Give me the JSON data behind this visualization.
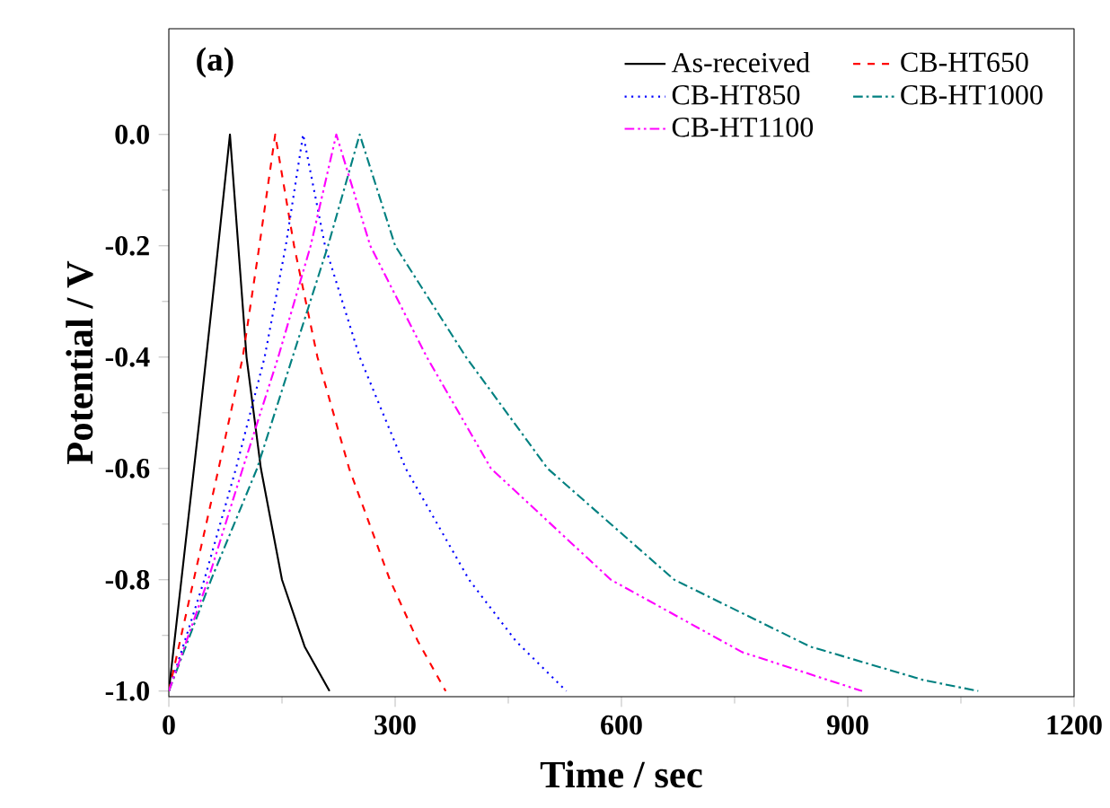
{
  "chart_data": {
    "type": "line",
    "xlabel": "Time / sec",
    "ylabel": "Potential / V",
    "annotations": [
      "(a)"
    ],
    "xlim": [
      0,
      1200
    ],
    "xticks": [
      0,
      300,
      600,
      900,
      1200
    ],
    "ylim": [
      -1.01,
      0.19
    ],
    "yticks": [
      {
        "value": -1,
        "label": "-1.0"
      },
      -0.8,
      -0.6,
      -0.4,
      -0.2,
      {
        "value": 0,
        "label": "0.0"
      }
    ],
    "legend": "top right",
    "grid": false,
    "series": [
      {
        "name": "As-received",
        "color": "#000000",
        "line_style": "solid",
        "x": [
          0,
          20,
          40,
          60,
          81,
          92,
          103,
          122,
          150,
          180,
          213
        ],
        "values": [
          -1.0,
          -0.76,
          -0.52,
          -0.27,
          0.0,
          -0.2,
          -0.4,
          -0.6,
          -0.8,
          -0.92,
          -1.0
        ]
      },
      {
        "name": "CB-HT650",
        "color": "#ff0000",
        "line_style": "dashed",
        "x": [
          0,
          33,
          66,
          98,
          120,
          141,
          166,
          197,
          239,
          293,
          330,
          367
        ],
        "values": [
          -1.0,
          -0.8,
          -0.6,
          -0.4,
          -0.2,
          0.0,
          -0.2,
          -0.4,
          -0.6,
          -0.8,
          -0.91,
          -1.0
        ]
      },
      {
        "name": "CB-HT850",
        "color": "#0000ff",
        "line_style": "dotted",
        "x": [
          0,
          47,
          89,
          127,
          155,
          178,
          207,
          253,
          314,
          398,
          460,
          527
        ],
        "values": [
          -1.0,
          -0.8,
          -0.6,
          -0.4,
          -0.2,
          0.0,
          -0.2,
          -0.4,
          -0.6,
          -0.8,
          -0.91,
          -1.0
        ]
      },
      {
        "name": "CB-HT1000",
        "color": "#008080",
        "line_style": "dashdot",
        "x": [
          0,
          56,
          117,
          164,
          211,
          253,
          300,
          394,
          502,
          670,
          850,
          1000,
          1073
        ],
        "values": [
          -1.0,
          -0.8,
          -0.6,
          -0.4,
          -0.2,
          0.0,
          -0.2,
          -0.4,
          -0.6,
          -0.8,
          -0.92,
          -0.98,
          -1.0
        ]
      },
      {
        "name": "CB-HT1100",
        "color": "#ff00ff",
        "line_style": "dashdotdot",
        "x": [
          0,
          52,
          98,
          145,
          188,
          222,
          267,
          342,
          427,
          586,
          760,
          919
        ],
        "values": [
          -1.0,
          -0.8,
          -0.6,
          -0.4,
          -0.2,
          0.0,
          -0.2,
          -0.4,
          -0.6,
          -0.8,
          -0.93,
          -1.0
        ]
      }
    ]
  }
}
